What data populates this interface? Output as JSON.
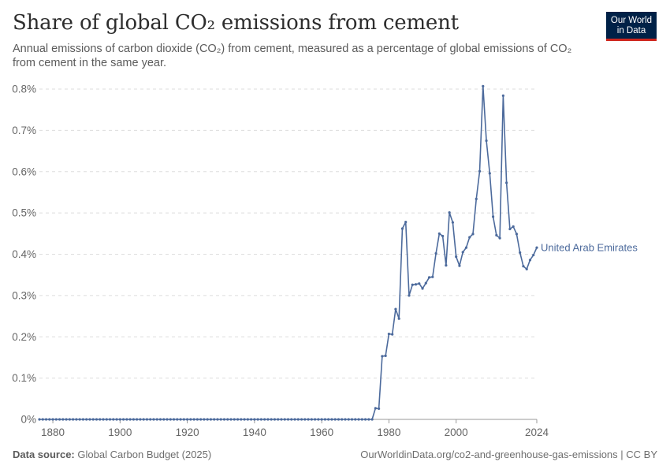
{
  "header": {
    "title": "Share of global CO₂ emissions from cement",
    "subtitle": "Annual emissions of carbon dioxide (CO₂) from cement, measured as a percentage of global emissions of CO₂ from cement in the same year.",
    "logo_line1": "Our World",
    "logo_line2": "in Data"
  },
  "footer": {
    "source_label": "Data source:",
    "source_value": "Global Carbon Budget (2025)",
    "url": "OurWorldinData.org/co2-and-greenhouse-gas-emissions | CC BY"
  },
  "colors": {
    "series": "#4c6a9c",
    "grid": "#dddddd",
    "brand_bg": "#002147",
    "brand_accent": "#ce261e"
  },
  "chart_data": {
    "type": "line",
    "title": "Share of global CO₂ emissions from cement",
    "xlabel": "",
    "ylabel": "",
    "xlim": [
      1876,
      2024
    ],
    "ylim": [
      0,
      0.8
    ],
    "y_unit": "%",
    "y_ticks": [
      0,
      0.1,
      0.2,
      0.3,
      0.4,
      0.5,
      0.6,
      0.7,
      0.8
    ],
    "y_tick_labels": [
      "0%",
      "0.1%",
      "0.2%",
      "0.3%",
      "0.4%",
      "0.5%",
      "0.6%",
      "0.7%",
      "0.8%"
    ],
    "x_ticks": [
      1880,
      1900,
      1920,
      1940,
      1960,
      1980,
      2000,
      2024
    ],
    "x_tick_labels": [
      "1880",
      "1900",
      "1920",
      "1940",
      "1960",
      "1980",
      "2000",
      "2024"
    ],
    "grid": "horizontal-dashed",
    "legend": "inline-end-label",
    "series": [
      {
        "name": "United Arab Emirates",
        "x_start": 1876,
        "zero_until": 1975,
        "points": [
          [
            1976,
            0.027
          ],
          [
            1977,
            0.026
          ],
          [
            1978,
            0.153
          ],
          [
            1979,
            0.154
          ],
          [
            1980,
            0.207
          ],
          [
            1981,
            0.206
          ],
          [
            1982,
            0.267
          ],
          [
            1983,
            0.244
          ],
          [
            1984,
            0.462
          ],
          [
            1985,
            0.478
          ],
          [
            1986,
            0.3
          ],
          [
            1987,
            0.326
          ],
          [
            1988,
            0.327
          ],
          [
            1989,
            0.329
          ],
          [
            1990,
            0.317
          ],
          [
            1991,
            0.33
          ],
          [
            1992,
            0.344
          ],
          [
            1993,
            0.345
          ],
          [
            1994,
            0.402
          ],
          [
            1995,
            0.45
          ],
          [
            1996,
            0.444
          ],
          [
            1997,
            0.373
          ],
          [
            1998,
            0.501
          ],
          [
            1999,
            0.477
          ],
          [
            2000,
            0.394
          ],
          [
            2001,
            0.372
          ],
          [
            2002,
            0.405
          ],
          [
            2003,
            0.416
          ],
          [
            2004,
            0.441
          ],
          [
            2005,
            0.449
          ],
          [
            2006,
            0.534
          ],
          [
            2007,
            0.601
          ],
          [
            2008,
            0.807
          ],
          [
            2009,
            0.675
          ],
          [
            2010,
            0.596
          ],
          [
            2011,
            0.491
          ],
          [
            2012,
            0.446
          ],
          [
            2013,
            0.439
          ],
          [
            2014,
            0.784
          ],
          [
            2015,
            0.573
          ],
          [
            2016,
            0.461
          ],
          [
            2017,
            0.467
          ],
          [
            2018,
            0.449
          ],
          [
            2019,
            0.404
          ],
          [
            2020,
            0.371
          ],
          [
            2021,
            0.364
          ],
          [
            2022,
            0.386
          ],
          [
            2023,
            0.398
          ],
          [
            2024,
            0.416
          ]
        ]
      }
    ]
  }
}
